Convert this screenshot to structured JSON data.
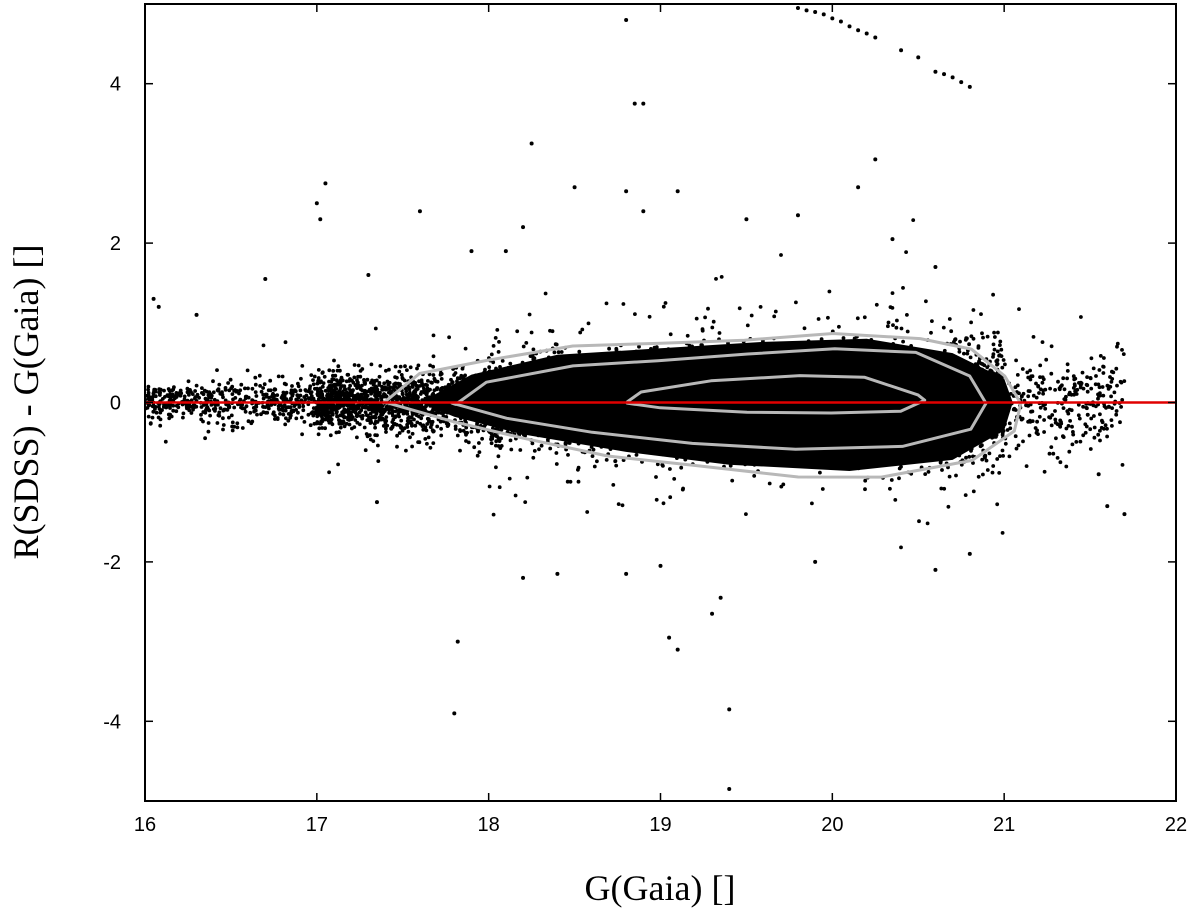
{
  "chart_data": {
    "type": "scatter",
    "title": "",
    "xlabel": "G(Gaia) []",
    "ylabel": "R(SDSS) - G(Gaia) []",
    "xlim": [
      16,
      22
    ],
    "ylim": [
      -5,
      5
    ],
    "x_ticks": [
      16,
      17,
      18,
      19,
      20,
      21,
      22
    ],
    "y_ticks": [
      -4,
      -2,
      0,
      2,
      4
    ],
    "x_tick_labels": [
      "16",
      "17",
      "18",
      "19",
      "20",
      "21",
      "22"
    ],
    "y_tick_labels": [
      "-4",
      "-2",
      "0",
      "2",
      "4"
    ],
    "grid": false,
    "legend": "none",
    "colors": {
      "points": "#000000",
      "contours": "#b8b8b8",
      "reference_line": "#e00000"
    },
    "reference_line": {
      "y": 0
    },
    "outliers": [
      [
        16.05,
        1.3
      ],
      [
        16.08,
        1.2
      ],
      [
        16.3,
        1.1
      ],
      [
        16.7,
        1.55
      ],
      [
        17.0,
        2.5
      ],
      [
        17.02,
        2.3
      ],
      [
        17.05,
        2.75
      ],
      [
        17.3,
        1.6
      ],
      [
        17.6,
        2.4
      ],
      [
        17.9,
        1.9
      ],
      [
        18.1,
        1.9
      ],
      [
        18.2,
        2.2
      ],
      [
        18.25,
        3.25
      ],
      [
        18.5,
        2.7
      ],
      [
        18.8,
        4.8
      ],
      [
        18.85,
        3.75
      ],
      [
        18.9,
        3.75
      ],
      [
        18.8,
        2.65
      ],
      [
        18.9,
        2.4
      ],
      [
        19.1,
        2.65
      ],
      [
        19.5,
        2.3
      ],
      [
        19.8,
        2.35
      ],
      [
        20.15,
        2.7
      ],
      [
        20.25,
        3.05
      ],
      [
        20.35,
        2.05
      ],
      [
        20.6,
        1.7
      ],
      [
        17.35,
        -1.25
      ],
      [
        17.8,
        -3.9
      ],
      [
        17.82,
        -3.0
      ],
      [
        18.2,
        -2.2
      ],
      [
        18.4,
        -2.15
      ],
      [
        18.8,
        -2.15
      ],
      [
        19.0,
        -2.05
      ],
      [
        19.05,
        -2.95
      ],
      [
        19.1,
        -3.1
      ],
      [
        19.3,
        -2.65
      ],
      [
        19.35,
        -2.45
      ],
      [
        19.4,
        -3.85
      ],
      [
        19.4,
        -4.85
      ],
      [
        19.9,
        -2.0
      ],
      [
        20.6,
        -2.1
      ],
      [
        20.8,
        -1.9
      ],
      [
        21.6,
        -1.3
      ],
      [
        21.7,
        -1.4
      ],
      [
        21.55,
        -0.9
      ]
    ],
    "diagonal_streak": [
      [
        19.8,
        4.95
      ],
      [
        19.85,
        4.92
      ],
      [
        19.9,
        4.9
      ],
      [
        19.95,
        4.87
      ],
      [
        20.0,
        4.82
      ],
      [
        20.05,
        4.78
      ],
      [
        20.1,
        4.72
      ],
      [
        20.15,
        4.67
      ],
      [
        20.2,
        4.63
      ],
      [
        20.25,
        4.58
      ],
      [
        20.4,
        4.42
      ],
      [
        20.5,
        4.33
      ],
      [
        20.6,
        4.15
      ],
      [
        20.65,
        4.12
      ],
      [
        20.7,
        4.08
      ],
      [
        20.75,
        4.02
      ],
      [
        20.8,
        3.96
      ]
    ],
    "contours": [
      {
        "level": "outer",
        "points": [
          [
            17.4,
            0.0
          ],
          [
            17.6,
            0.35
          ],
          [
            18.0,
            0.55
          ],
          [
            18.5,
            0.68
          ],
          [
            19.0,
            0.72
          ],
          [
            19.5,
            0.8
          ],
          [
            20.0,
            0.85
          ],
          [
            20.5,
            0.82
          ],
          [
            20.8,
            0.65
          ],
          [
            21.0,
            0.35
          ],
          [
            21.1,
            0.0
          ],
          [
            21.05,
            -0.35
          ],
          [
            20.8,
            -0.75
          ],
          [
            20.3,
            -0.95
          ],
          [
            19.8,
            -0.92
          ],
          [
            19.2,
            -0.8
          ],
          [
            18.7,
            -0.65
          ],
          [
            18.2,
            -0.45
          ],
          [
            17.8,
            -0.25
          ],
          [
            17.4,
            0.0
          ]
        ]
      },
      {
        "level": "middle",
        "points": [
          [
            17.8,
            0.0
          ],
          [
            18.0,
            0.25
          ],
          [
            18.5,
            0.45
          ],
          [
            19.0,
            0.55
          ],
          [
            19.5,
            0.62
          ],
          [
            20.0,
            0.65
          ],
          [
            20.5,
            0.6
          ],
          [
            20.8,
            0.35
          ],
          [
            20.9,
            0.0
          ],
          [
            20.8,
            -0.35
          ],
          [
            20.4,
            -0.55
          ],
          [
            19.8,
            -0.58
          ],
          [
            19.2,
            -0.5
          ],
          [
            18.6,
            -0.35
          ],
          [
            18.1,
            -0.2
          ],
          [
            17.8,
            0.0
          ]
        ]
      },
      {
        "level": "inner",
        "points": [
          [
            18.8,
            0.0
          ],
          [
            18.9,
            0.15
          ],
          [
            19.3,
            0.25
          ],
          [
            19.8,
            0.32
          ],
          [
            20.2,
            0.3
          ],
          [
            20.5,
            0.12
          ],
          [
            20.55,
            0.0
          ],
          [
            20.4,
            -0.12
          ],
          [
            20.0,
            -0.15
          ],
          [
            19.5,
            -0.12
          ],
          [
            19.0,
            -0.08
          ],
          [
            18.8,
            0.0
          ]
        ]
      }
    ],
    "density_model": {
      "x_range": [
        16.0,
        21.75
      ],
      "center_offset_per_mag": 0.0,
      "sigma_at_16": 0.1,
      "sigma_at_20": 0.32,
      "relative_density_peak_mag": 20.0
    }
  }
}
